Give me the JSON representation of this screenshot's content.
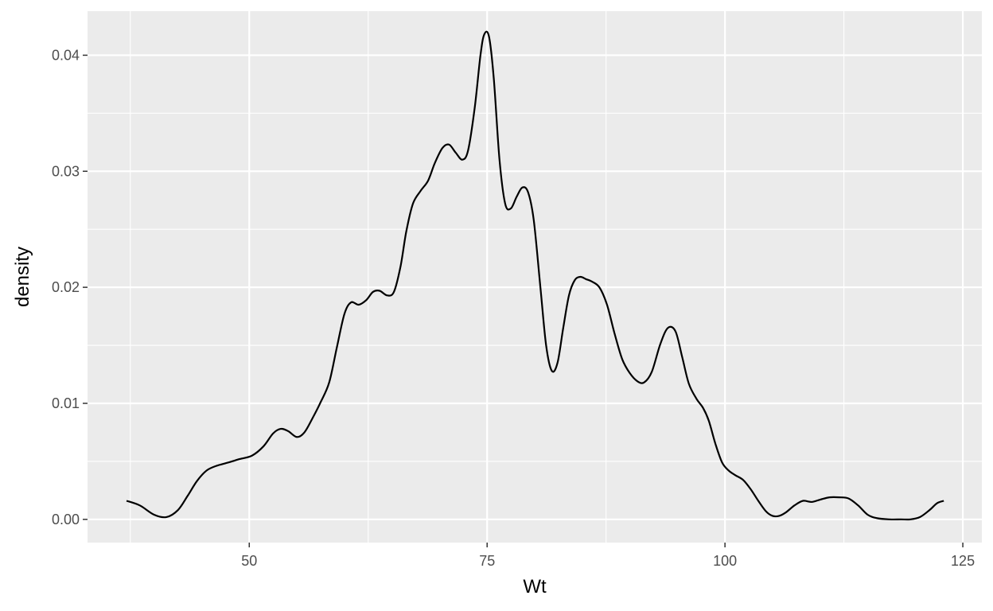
{
  "chart_data": {
    "type": "line",
    "title": "",
    "xlabel": "Wt",
    "ylabel": "density",
    "xlim": [
      33,
      127
    ],
    "ylim": [
      -0.002,
      0.0438
    ],
    "x_ticks": [
      50,
      75,
      100,
      125
    ],
    "x_tick_labels": [
      "50",
      "75",
      "100",
      "125"
    ],
    "y_ticks": [
      0.0,
      0.01,
      0.02,
      0.03,
      0.04
    ],
    "y_tick_labels": [
      "0.00",
      "0.01",
      "0.02",
      "0.03",
      "0.04"
    ],
    "grid": true,
    "colors": {
      "panel": "#ebebeb",
      "grid": "#ffffff",
      "line": "#000000",
      "tick": "#333333",
      "tick_label": "#4d4d4d"
    },
    "series": [
      {
        "x": [
          37.1,
          38.5,
          40.0,
          41.3,
          42.5,
          43.5,
          44.5,
          45.5,
          46.5,
          47.8,
          49.0,
          50.3,
          51.5,
          52.5,
          53.3,
          54.1,
          55.0,
          55.8,
          56.7,
          57.5,
          58.4,
          59.2,
          60.0,
          60.7,
          61.5,
          62.3,
          63.0,
          63.7,
          64.5,
          65.2,
          65.9,
          66.5,
          67.2,
          68.0,
          68.8,
          69.5,
          70.3,
          71.0,
          71.7,
          72.4,
          73.0,
          73.7,
          74.3,
          74.7,
          75.2,
          75.7,
          76.3,
          76.9,
          77.5,
          78.1,
          78.7,
          79.3,
          79.9,
          80.6,
          81.2,
          81.8,
          82.4,
          83.0,
          83.6,
          84.2,
          84.8,
          85.4,
          86.0,
          86.8,
          87.6,
          88.4,
          89.2,
          90.0,
          90.8,
          91.5,
          92.3,
          93.2,
          94.0,
          94.8,
          95.5,
          96.2,
          97.0,
          97.7,
          98.3,
          99.0,
          99.7,
          100.4,
          101.1,
          101.9,
          102.7,
          103.5,
          104.3,
          105.0,
          105.7,
          106.4,
          107.3,
          108.2,
          109.1,
          110.0,
          111.0,
          112.0,
          113.0,
          114.0,
          115.0,
          116.0,
          117.3,
          118.5,
          119.5,
          120.5,
          121.5,
          122.3,
          123.0
        ],
        "y": [
          0.0016,
          0.0012,
          0.0004,
          0.0002,
          0.0008,
          0.002,
          0.0033,
          0.0042,
          0.0046,
          0.0049,
          0.0052,
          0.0055,
          0.0063,
          0.0074,
          0.0078,
          0.0076,
          0.0071,
          0.0075,
          0.0088,
          0.0101,
          0.0118,
          0.0148,
          0.0177,
          0.0187,
          0.0185,
          0.0189,
          0.0196,
          0.0197,
          0.0193,
          0.0196,
          0.0218,
          0.0248,
          0.0272,
          0.0283,
          0.0292,
          0.0307,
          0.032,
          0.0323,
          0.0316,
          0.031,
          0.0318,
          0.0355,
          0.04,
          0.0418,
          0.0416,
          0.038,
          0.031,
          0.0272,
          0.0268,
          0.0278,
          0.0286,
          0.0282,
          0.0258,
          0.02,
          0.015,
          0.0128,
          0.0135,
          0.0165,
          0.0193,
          0.0206,
          0.0209,
          0.0207,
          0.0205,
          0.02,
          0.0185,
          0.016,
          0.0138,
          0.0126,
          0.0119,
          0.0118,
          0.0127,
          0.0151,
          0.0165,
          0.0162,
          0.014,
          0.0117,
          0.0104,
          0.0096,
          0.0085,
          0.0065,
          0.0049,
          0.0042,
          0.0038,
          0.0034,
          0.0026,
          0.0016,
          0.0007,
          0.0003,
          0.0003,
          0.0006,
          0.0012,
          0.0016,
          0.0015,
          0.0017,
          0.0019,
          0.0019,
          0.0018,
          0.0012,
          0.0004,
          0.0001,
          0.0,
          0.0,
          0.0,
          0.0002,
          0.0008,
          0.0014,
          0.0016
        ]
      }
    ]
  }
}
